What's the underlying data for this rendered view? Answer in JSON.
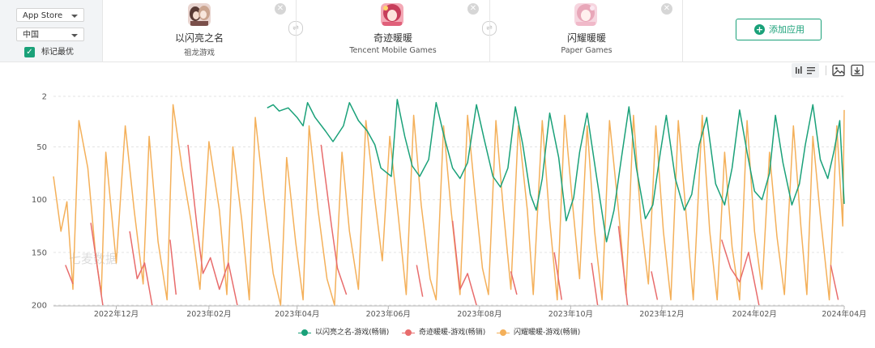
{
  "filters": {
    "store": "App Store",
    "region": "中国",
    "checkbox_label": "标记最优",
    "checkbox_checked": true
  },
  "apps": [
    {
      "name": "以闪亮之名",
      "developer": "祖龙游戏",
      "color": "#1aa179"
    },
    {
      "name": "奇迹暖暖",
      "developer": "Tencent Mobile Games",
      "color": "#e86c6c"
    },
    {
      "name": "闪耀暖暖",
      "developer": "Paper Games",
      "color": "#f4b05a"
    }
  ],
  "add_app_label": "添加应用",
  "toolbar": {
    "icons": [
      "bar-chart-icon",
      "list-icon",
      "image-export-icon",
      "download-icon"
    ]
  },
  "watermark": "七麦数据",
  "chart_data": {
    "type": "line",
    "y_axis": {
      "inverted": true,
      "ylim": [
        2,
        200
      ],
      "ticks": [
        2,
        50,
        100,
        150,
        200
      ]
    },
    "x_axis": {
      "range": [
        "2022-10-20",
        "2024-04-01"
      ],
      "tick_dates": [
        "2022-12-01",
        "2023-02-01",
        "2023-04-01",
        "2023-06-01",
        "2023-08-01",
        "2023-10-01",
        "2023-12-01",
        "2024-02-01",
        "2024-04-01"
      ],
      "tick_labels": [
        "2022年12月",
        "2023年02月",
        "2023年04月",
        "2023年06月",
        "2023年08月",
        "2023年10月",
        "2023年12月",
        "2024年02月",
        "2024年04月"
      ]
    },
    "grid": true,
    "legend_position": "bottom",
    "series": [
      {
        "name": "以闪亮之名-游戏(畅销)",
        "color": "#1aa179",
        "points": [
          [
            "2023-03-12",
            13
          ],
          [
            "2023-03-16",
            10
          ],
          [
            "2023-03-20",
            16
          ],
          [
            "2023-03-26",
            13
          ],
          [
            "2023-04-01",
            22
          ],
          [
            "2023-04-05",
            30
          ],
          [
            "2023-04-08",
            8
          ],
          [
            "2023-04-13",
            22
          ],
          [
            "2023-04-20",
            35
          ],
          [
            "2023-04-25",
            45
          ],
          [
            "2023-05-02",
            30
          ],
          [
            "2023-05-06",
            8
          ],
          [
            "2023-05-12",
            25
          ],
          [
            "2023-05-18",
            35
          ],
          [
            "2023-05-23",
            48
          ],
          [
            "2023-05-27",
            70
          ],
          [
            "2023-06-03",
            78
          ],
          [
            "2023-06-07",
            5
          ],
          [
            "2023-06-12",
            40
          ],
          [
            "2023-06-17",
            68
          ],
          [
            "2023-06-22",
            78
          ],
          [
            "2023-06-28",
            62
          ],
          [
            "2023-07-03",
            8
          ],
          [
            "2023-07-08",
            38
          ],
          [
            "2023-07-14",
            70
          ],
          [
            "2023-07-19",
            80
          ],
          [
            "2023-07-24",
            65
          ],
          [
            "2023-07-30",
            10
          ],
          [
            "2023-08-04",
            42
          ],
          [
            "2023-08-10",
            78
          ],
          [
            "2023-08-15",
            88
          ],
          [
            "2023-08-20",
            70
          ],
          [
            "2023-08-25",
            12
          ],
          [
            "2023-08-30",
            48
          ],
          [
            "2023-09-04",
            95
          ],
          [
            "2023-09-08",
            110
          ],
          [
            "2023-09-12",
            80
          ],
          [
            "2023-09-17",
            18
          ],
          [
            "2023-09-23",
            60
          ],
          [
            "2023-09-28",
            120
          ],
          [
            "2023-10-03",
            98
          ],
          [
            "2023-10-07",
            55
          ],
          [
            "2023-10-12",
            18
          ],
          [
            "2023-10-18",
            75
          ],
          [
            "2023-10-25",
            140
          ],
          [
            "2023-10-30",
            110
          ],
          [
            "2023-11-04",
            60
          ],
          [
            "2023-11-09",
            12
          ],
          [
            "2023-11-14",
            70
          ],
          [
            "2023-11-20",
            118
          ],
          [
            "2023-11-25",
            105
          ],
          [
            "2023-11-30",
            55
          ],
          [
            "2023-12-04",
            20
          ],
          [
            "2023-12-10",
            80
          ],
          [
            "2023-12-16",
            110
          ],
          [
            "2023-12-21",
            95
          ],
          [
            "2023-12-26",
            48
          ],
          [
            "2023-12-31",
            22
          ],
          [
            "2024-01-06",
            85
          ],
          [
            "2024-01-12",
            105
          ],
          [
            "2024-01-17",
            70
          ],
          [
            "2024-01-22",
            15
          ],
          [
            "2024-01-27",
            55
          ],
          [
            "2024-02-01",
            92
          ],
          [
            "2024-02-06",
            100
          ],
          [
            "2024-02-11",
            75
          ],
          [
            "2024-02-15",
            20
          ],
          [
            "2024-02-20",
            65
          ],
          [
            "2024-02-26",
            105
          ],
          [
            "2024-03-02",
            85
          ],
          [
            "2024-03-06",
            48
          ],
          [
            "2024-03-11",
            10
          ],
          [
            "2024-03-16",
            62
          ],
          [
            "2024-03-21",
            80
          ],
          [
            "2024-03-25",
            55
          ],
          [
            "2024-03-29",
            25
          ],
          [
            "2024-04-01",
            104
          ]
        ]
      },
      {
        "name": "奇迹暖暖-游戏(畅销)",
        "color": "#e86c6c",
        "segments": [
          [
            [
              "2022-10-28",
              162
            ],
            [
              "2022-11-02",
              180
            ]
          ],
          [
            [
              "2022-11-14",
              122
            ],
            [
              "2022-11-22",
              200
            ]
          ],
          [
            [
              "2022-12-10",
              130
            ],
            [
              "2022-12-15",
              175
            ],
            [
              "2022-12-20",
              160
            ],
            [
              "2022-12-25",
              200
            ]
          ],
          [
            [
              "2023-01-06",
              138
            ],
            [
              "2023-01-10",
              190
            ]
          ],
          [
            [
              "2023-01-18",
              48
            ],
            [
              "2023-01-24",
              125
            ],
            [
              "2023-01-28",
              170
            ],
            [
              "2023-02-02",
              155
            ],
            [
              "2023-02-08",
              185
            ],
            [
              "2023-02-14",
              160
            ],
            [
              "2023-02-20",
              200
            ]
          ],
          [
            [
              "2023-04-17",
              48
            ],
            [
              "2023-04-24",
              125
            ],
            [
              "2023-04-28",
              165
            ],
            [
              "2023-05-04",
              190
            ]
          ],
          [
            [
              "2023-06-20",
              162
            ],
            [
              "2023-06-24",
              192
            ]
          ],
          [
            [
              "2023-07-14",
              120
            ],
            [
              "2023-07-19",
              185
            ],
            [
              "2023-07-24",
              170
            ],
            [
              "2023-07-30",
              200
            ]
          ],
          [
            [
              "2023-08-22",
              168
            ],
            [
              "2023-08-26",
              190
            ]
          ],
          [
            [
              "2023-09-20",
              150
            ],
            [
              "2023-09-25",
              195
            ]
          ],
          [
            [
              "2023-10-15",
              160
            ],
            [
              "2023-10-19",
              200
            ]
          ],
          [
            [
              "2023-11-02",
              125
            ],
            [
              "2023-11-08",
              200
            ]
          ],
          [
            [
              "2023-11-24",
              168
            ],
            [
              "2023-11-28",
              195
            ]
          ],
          [
            [
              "2024-01-10",
              138
            ],
            [
              "2024-01-16",
              165
            ],
            [
              "2024-01-22",
              178
            ],
            [
              "2024-01-28",
              150
            ],
            [
              "2024-02-04",
              200
            ]
          ],
          [
            [
              "2024-03-23",
              162
            ],
            [
              "2024-03-28",
              195
            ]
          ]
        ]
      },
      {
        "name": "闪耀暖暖-游戏(畅销)",
        "color": "#f4b05a",
        "points": [
          [
            "2022-10-20",
            78
          ],
          [
            "2022-10-25",
            130
          ],
          [
            "2022-10-29",
            102
          ],
          [
            "2022-11-02",
            185
          ],
          [
            "2022-11-06",
            25
          ],
          [
            "2022-11-12",
            70
          ],
          [
            "2022-11-17",
            150
          ],
          [
            "2022-11-21",
            190
          ],
          [
            "2022-11-24",
            55
          ],
          [
            "2022-12-01",
            160
          ],
          [
            "2022-12-07",
            30
          ],
          [
            "2022-12-13",
            110
          ],
          [
            "2022-12-19",
            180
          ],
          [
            "2022-12-23",
            40
          ],
          [
            "2022-12-29",
            140
          ],
          [
            "2023-01-04",
            195
          ],
          [
            "2023-01-08",
            10
          ],
          [
            "2023-01-14",
            70
          ],
          [
            "2023-01-20",
            120
          ],
          [
            "2023-01-26",
            185
          ],
          [
            "2023-02-01",
            45
          ],
          [
            "2023-02-08",
            110
          ],
          [
            "2023-02-13",
            190
          ],
          [
            "2023-02-17",
            50
          ],
          [
            "2023-02-23",
            120
          ],
          [
            "2023-02-28",
            195
          ],
          [
            "2023-03-04",
            22
          ],
          [
            "2023-03-10",
            100
          ],
          [
            "2023-03-16",
            170
          ],
          [
            "2023-03-21",
            200
          ],
          [
            "2023-03-25",
            60
          ],
          [
            "2023-03-31",
            140
          ],
          [
            "2023-04-05",
            195
          ],
          [
            "2023-04-09",
            30
          ],
          [
            "2023-04-15",
            110
          ],
          [
            "2023-04-21",
            175
          ],
          [
            "2023-04-26",
            200
          ],
          [
            "2023-05-01",
            55
          ],
          [
            "2023-05-06",
            130
          ],
          [
            "2023-05-12",
            185
          ],
          [
            "2023-05-17",
            25
          ],
          [
            "2023-05-23",
            100
          ],
          [
            "2023-05-28",
            158
          ],
          [
            "2023-06-02",
            40
          ],
          [
            "2023-06-08",
            120
          ],
          [
            "2023-06-13",
            190
          ],
          [
            "2023-06-18",
            20
          ],
          [
            "2023-06-23",
            105
          ],
          [
            "2023-06-29",
            175
          ],
          [
            "2023-07-03",
            195
          ],
          [
            "2023-07-08",
            30
          ],
          [
            "2023-07-13",
            110
          ],
          [
            "2023-07-19",
            190
          ],
          [
            "2023-07-24",
            20
          ],
          [
            "2023-07-29",
            95
          ],
          [
            "2023-08-03",
            165
          ],
          [
            "2023-08-07",
            190
          ],
          [
            "2023-08-12",
            25
          ],
          [
            "2023-08-17",
            110
          ],
          [
            "2023-08-22",
            185
          ],
          [
            "2023-08-27",
            30
          ],
          [
            "2023-09-02",
            110
          ],
          [
            "2023-09-06",
            190
          ],
          [
            "2023-09-12",
            25
          ],
          [
            "2023-09-17",
            120
          ],
          [
            "2023-09-22",
            195
          ],
          [
            "2023-09-27",
            20
          ],
          [
            "2023-10-02",
            100
          ],
          [
            "2023-10-07",
            175
          ],
          [
            "2023-10-12",
            30
          ],
          [
            "2023-10-17",
            130
          ],
          [
            "2023-10-22",
            195
          ],
          [
            "2023-10-27",
            25
          ],
          [
            "2023-11-02",
            110
          ],
          [
            "2023-11-07",
            190
          ],
          [
            "2023-11-12",
            20
          ],
          [
            "2023-11-17",
            120
          ],
          [
            "2023-11-22",
            180
          ],
          [
            "2023-11-27",
            30
          ],
          [
            "2023-12-02",
            130
          ],
          [
            "2023-12-07",
            195
          ],
          [
            "2023-12-12",
            25
          ],
          [
            "2023-12-17",
            110
          ],
          [
            "2023-12-22",
            195
          ],
          [
            "2023-12-28",
            20
          ],
          [
            "2024-01-02",
            130
          ],
          [
            "2024-01-07",
            195
          ],
          [
            "2024-01-12",
            55
          ],
          [
            "2024-01-17",
            145
          ],
          [
            "2024-01-22",
            195
          ],
          [
            "2024-01-27",
            25
          ],
          [
            "2024-02-01",
            130
          ],
          [
            "2024-02-06",
            185
          ],
          [
            "2024-02-11",
            55
          ],
          [
            "2024-02-16",
            135
          ],
          [
            "2024-02-21",
            190
          ],
          [
            "2024-02-27",
            30
          ],
          [
            "2024-03-03",
            125
          ],
          [
            "2024-03-07",
            190
          ],
          [
            "2024-03-11",
            40
          ],
          [
            "2024-03-16",
            115
          ],
          [
            "2024-03-22",
            195
          ],
          [
            "2024-03-27",
            30
          ],
          [
            "2024-03-31",
            125
          ],
          [
            "2024-04-01",
            15
          ]
        ]
      }
    ]
  }
}
